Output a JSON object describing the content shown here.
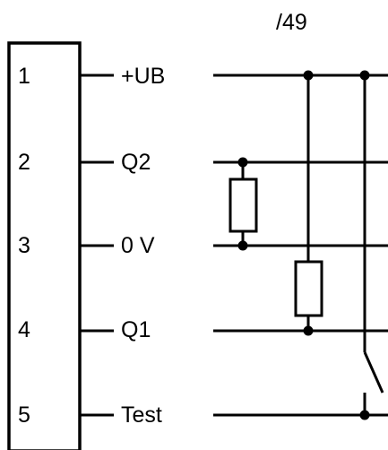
{
  "header": {
    "ref": "/49"
  },
  "terminals": [
    {
      "number": "1",
      "signal": "+UB"
    },
    {
      "number": "2",
      "signal": "Q2"
    },
    {
      "number": "3",
      "signal": "0 V"
    },
    {
      "number": "4",
      "signal": "Q1"
    },
    {
      "number": "5",
      "signal": "Test"
    }
  ]
}
